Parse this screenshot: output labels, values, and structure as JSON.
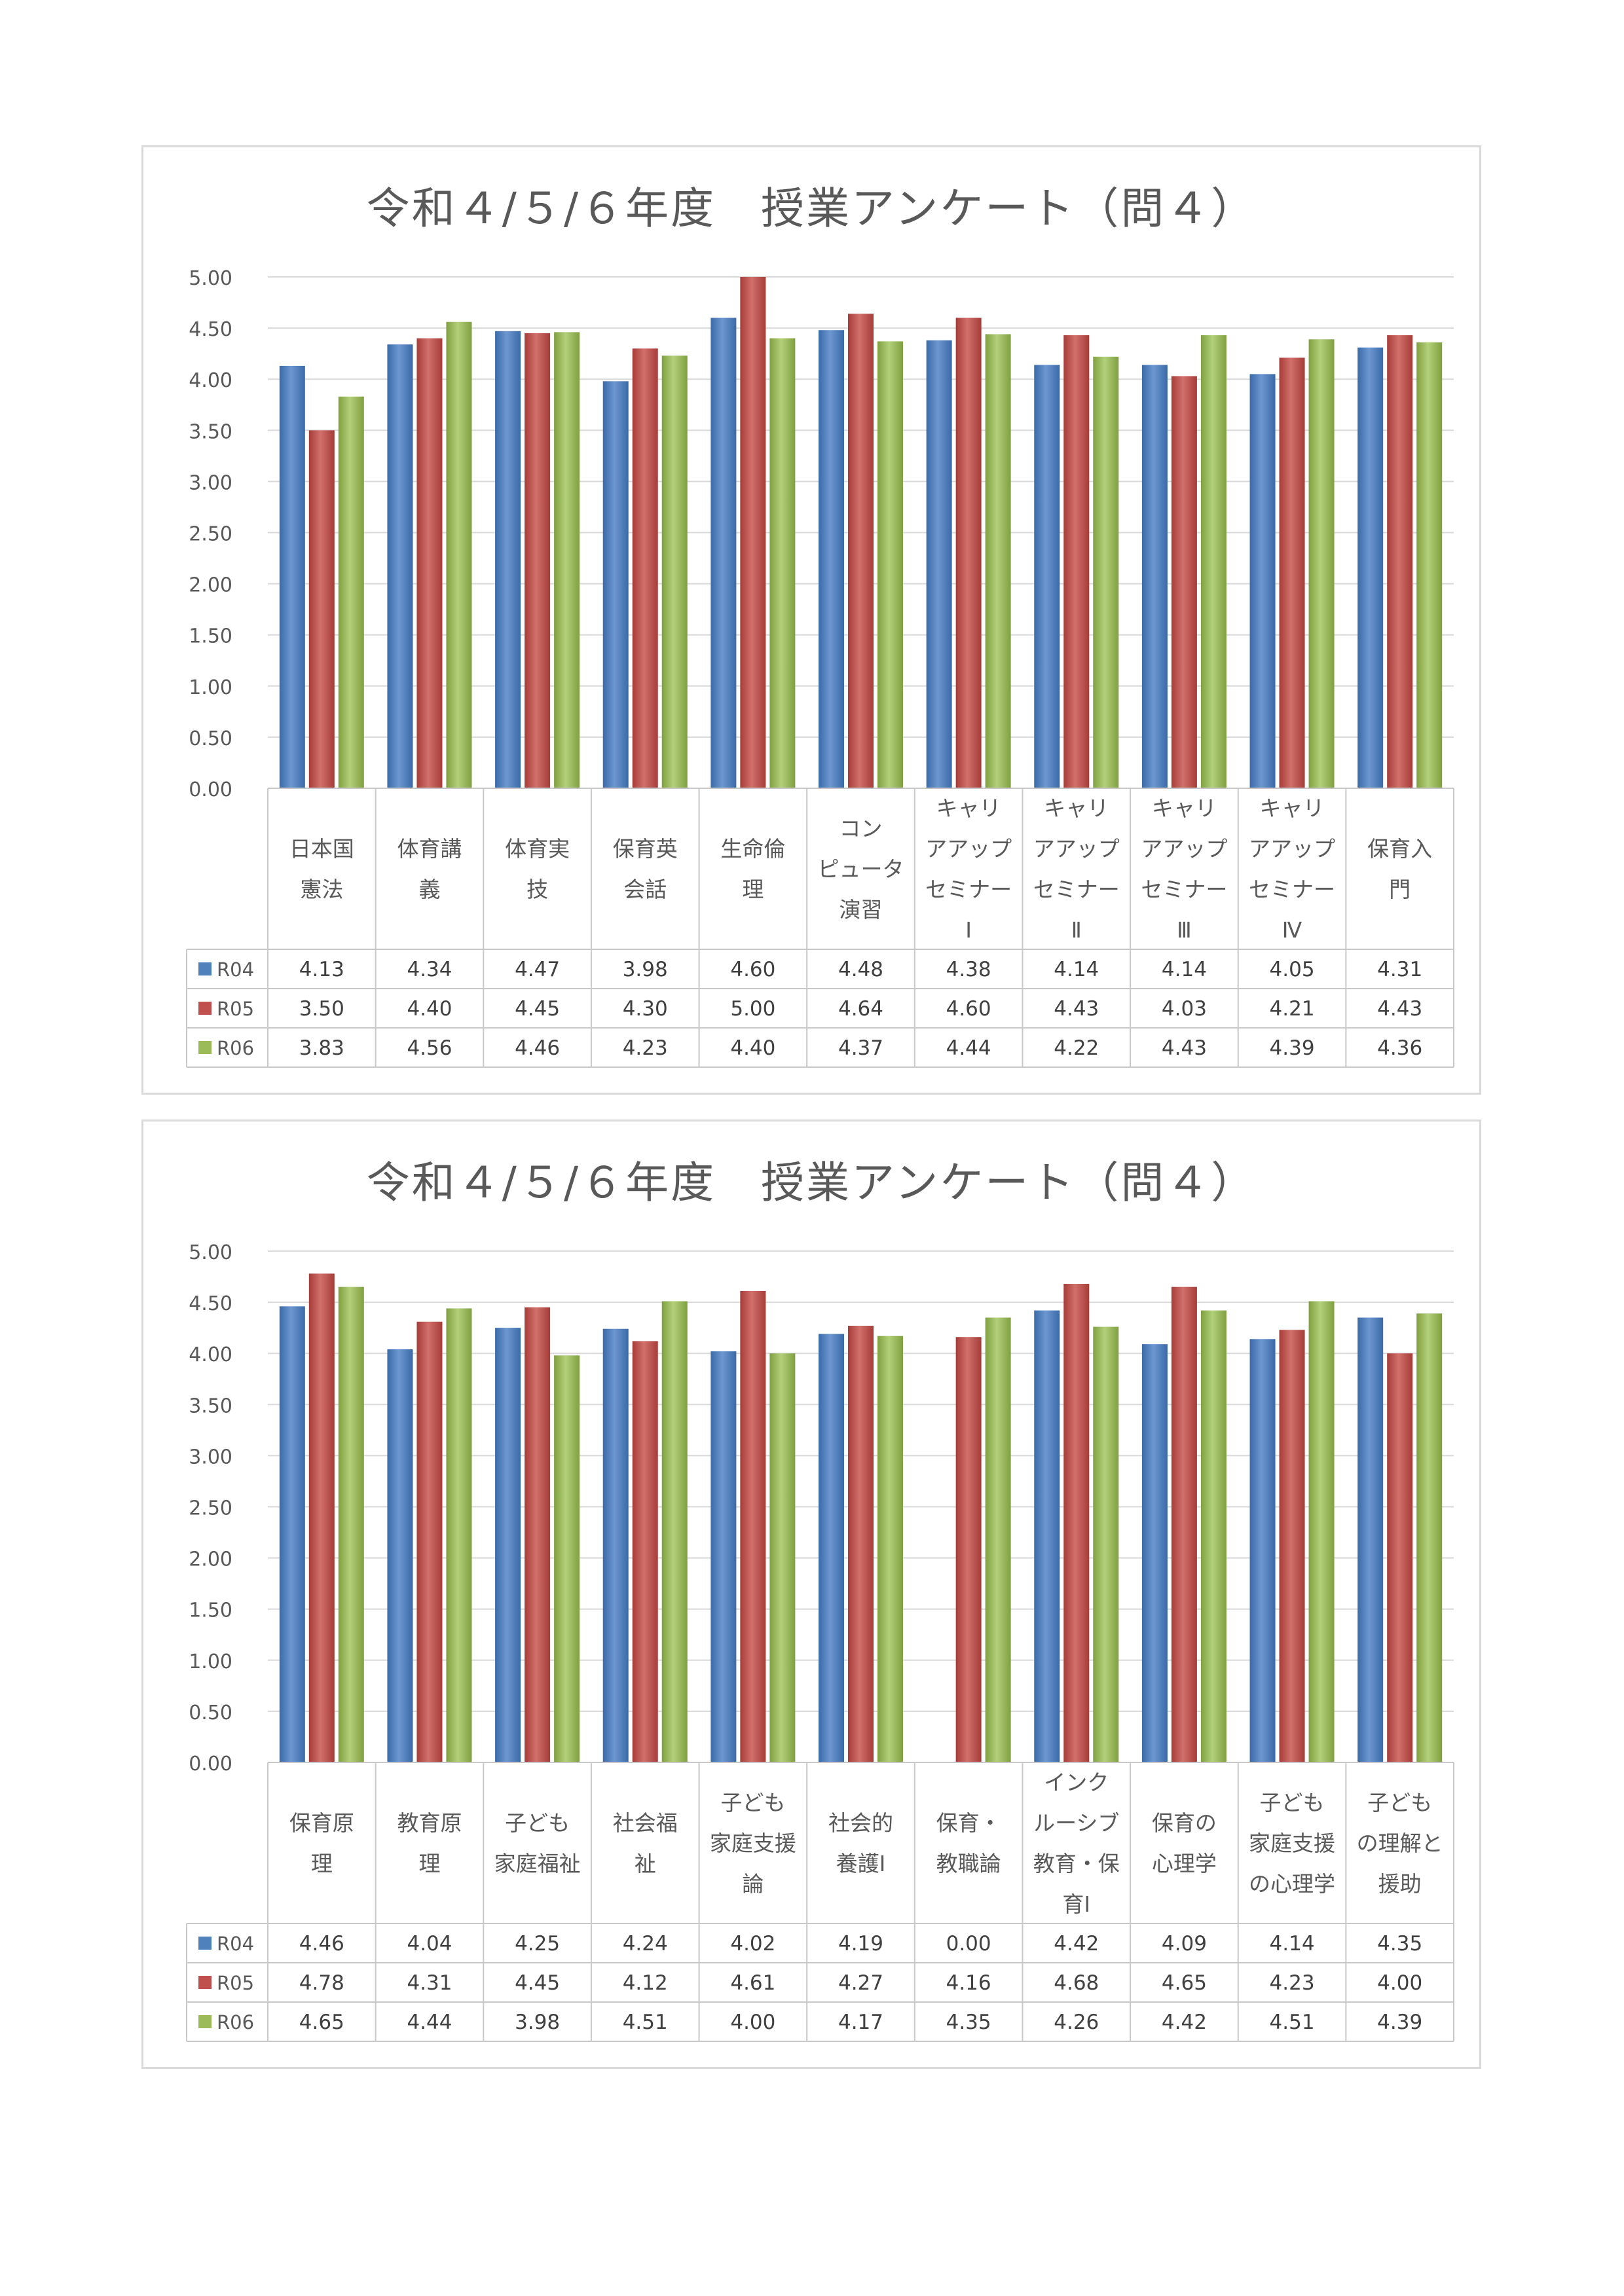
{
  "chart_data": [
    {
      "type": "bar",
      "title": "令和４/５/６年度　授業アンケート（問４）",
      "xlabel": "",
      "ylabel": "",
      "ylim": [
        0,
        5
      ],
      "yticks": [
        "0.00",
        "0.50",
        "1.00",
        "1.50",
        "2.00",
        "2.50",
        "3.00",
        "3.50",
        "4.00",
        "4.50",
        "5.00"
      ],
      "grid": true,
      "legend": "data-table-left",
      "categories": [
        [
          "日本国",
          "憲法"
        ],
        [
          "体育講",
          "義"
        ],
        [
          "体育実",
          "技"
        ],
        [
          "保育英",
          "会話"
        ],
        [
          "生命倫",
          "理"
        ],
        [
          "コン",
          "ピュータ",
          "演習"
        ],
        [
          "キャリ",
          "アアップ",
          "セミナー",
          "Ⅰ"
        ],
        [
          "キャリ",
          "アアップ",
          "セミナー",
          "Ⅱ"
        ],
        [
          "キャリ",
          "アアップ",
          "セミナー",
          "Ⅲ"
        ],
        [
          "キャリ",
          "アアップ",
          "セミナー",
          "Ⅳ"
        ],
        [
          "保育入",
          "門"
        ]
      ],
      "series": [
        {
          "name": "R04",
          "color": "#4f81bd",
          "values": [
            4.13,
            4.34,
            4.47,
            3.98,
            4.6,
            4.48,
            4.38,
            4.14,
            4.14,
            4.05,
            4.31
          ],
          "labels": [
            "4.13",
            "4.34",
            "4.47",
            "3.98",
            "4.60",
            "4.48",
            "4.38",
            "4.14",
            "4.14",
            "4.05",
            "4.31"
          ]
        },
        {
          "name": "R05",
          "color": "#c0504d",
          "values": [
            3.5,
            4.4,
            4.45,
            4.3,
            5.0,
            4.64,
            4.6,
            4.43,
            4.03,
            4.21,
            4.43
          ],
          "labels": [
            "3.50",
            "4.40",
            "4.45",
            "4.30",
            "5.00",
            "4.64",
            "4.60",
            "4.43",
            "4.03",
            "4.21",
            "4.43"
          ]
        },
        {
          "name": "R06",
          "color": "#9bbb59",
          "values": [
            3.83,
            4.56,
            4.46,
            4.23,
            4.4,
            4.37,
            4.44,
            4.22,
            4.43,
            4.39,
            4.36
          ],
          "labels": [
            "3.83",
            "4.56",
            "4.46",
            "4.23",
            "4.40",
            "4.37",
            "4.44",
            "4.22",
            "4.43",
            "4.39",
            "4.36"
          ]
        }
      ]
    },
    {
      "type": "bar",
      "title": "令和４/５/６年度　授業アンケート（問４）",
      "xlabel": "",
      "ylabel": "",
      "ylim": [
        0,
        5
      ],
      "yticks": [
        "0.00",
        "0.50",
        "1.00",
        "1.50",
        "2.00",
        "2.50",
        "3.00",
        "3.50",
        "4.00",
        "4.50",
        "5.00"
      ],
      "grid": true,
      "legend": "data-table-left",
      "categories": [
        [
          "保育原",
          "理"
        ],
        [
          "教育原",
          "理"
        ],
        [
          "子ども",
          "家庭福祉"
        ],
        [
          "社会福",
          "祉"
        ],
        [
          "子ども",
          "家庭支援",
          "論"
        ],
        [
          "社会的",
          "養護Ⅰ"
        ],
        [
          "保育・",
          "教職論"
        ],
        [
          "インク",
          "ルーシブ",
          "教育・保",
          "育Ⅰ"
        ],
        [
          "保育の",
          "心理学"
        ],
        [
          "子ども",
          "家庭支援",
          "の心理学"
        ],
        [
          "子ども",
          "の理解と",
          "援助"
        ]
      ],
      "series": [
        {
          "name": "R04",
          "color": "#4f81bd",
          "values": [
            4.46,
            4.04,
            4.25,
            4.24,
            4.02,
            4.19,
            0.0,
            4.42,
            4.09,
            4.14,
            4.35
          ],
          "labels": [
            "4.46",
            "4.04",
            "4.25",
            "4.24",
            "4.02",
            "4.19",
            "0.00",
            "4.42",
            "4.09",
            "4.14",
            "4.35"
          ]
        },
        {
          "name": "R05",
          "color": "#c0504d",
          "values": [
            4.78,
            4.31,
            4.45,
            4.12,
            4.61,
            4.27,
            4.16,
            4.68,
            4.65,
            4.23,
            4.0
          ],
          "labels": [
            "4.78",
            "4.31",
            "4.45",
            "4.12",
            "4.61",
            "4.27",
            "4.16",
            "4.68",
            "4.65",
            "4.23",
            "4.00"
          ]
        },
        {
          "name": "R06",
          "color": "#9bbb59",
          "values": [
            4.65,
            4.44,
            3.98,
            4.51,
            4.0,
            4.17,
            4.35,
            4.26,
            4.42,
            4.51,
            4.39
          ],
          "labels": [
            "4.65",
            "4.44",
            "3.98",
            "4.51",
            "4.00",
            "4.17",
            "4.35",
            "4.26",
            "4.42",
            "4.51",
            "4.39"
          ]
        }
      ]
    }
  ]
}
